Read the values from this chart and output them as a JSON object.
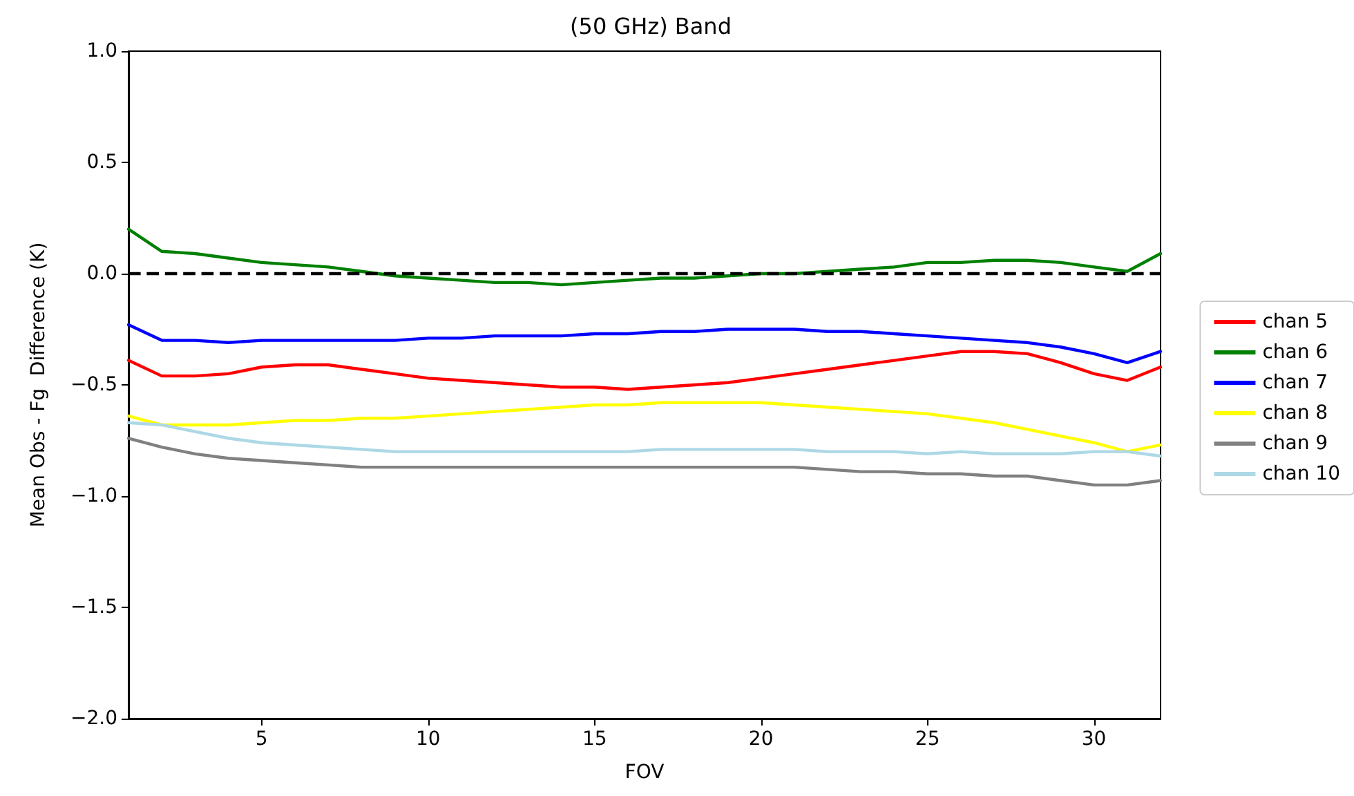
{
  "chart_data": {
    "type": "line",
    "title": "(50 GHz) Band",
    "xlabel": "FOV",
    "ylabel": "Mean Obs - Fg  Difference (K)",
    "x": [
      1,
      2,
      3,
      4,
      5,
      6,
      7,
      8,
      9,
      10,
      11,
      12,
      13,
      14,
      15,
      16,
      17,
      18,
      19,
      20,
      21,
      22,
      23,
      24,
      25,
      26,
      27,
      28,
      29,
      30,
      31,
      32
    ],
    "xlim": [
      1,
      32
    ],
    "xticks": [
      5,
      10,
      15,
      20,
      25,
      30
    ],
    "ylim": [
      -2,
      1
    ],
    "yticks": [
      {
        "value": -2,
        "label": "−2.0"
      },
      {
        "value": -1.5,
        "label": "−1.5"
      },
      {
        "value": -1,
        "label": "−1.0"
      },
      {
        "value": -0.5,
        "label": "−0.5"
      },
      {
        "value": 0,
        "label": "0.0"
      },
      {
        "value": 0.5,
        "label": "0.5"
      },
      {
        "value": 1,
        "label": "1.0"
      }
    ],
    "grid": false,
    "legend": "right",
    "marker": "none",
    "line_style": "solid",
    "ref_lines": [
      {
        "axis": "y",
        "value": 0,
        "label": null,
        "color": "#000000",
        "line_style": "dashed"
      }
    ],
    "series": [
      {
        "name": "chan 5",
        "color": "#ff0000",
        "values": [
          -0.39,
          -0.46,
          -0.46,
          -0.45,
          -0.42,
          -0.41,
          -0.41,
          -0.43,
          -0.45,
          -0.47,
          -0.48,
          -0.49,
          -0.5,
          -0.51,
          -0.51,
          -0.52,
          -0.51,
          -0.5,
          -0.49,
          -0.47,
          -0.45,
          -0.43,
          -0.41,
          -0.39,
          -0.37,
          -0.35,
          -0.35,
          -0.36,
          -0.4,
          -0.45,
          -0.48,
          -0.42
        ]
      },
      {
        "name": "chan 6",
        "color": "#008000",
        "values": [
          0.2,
          0.1,
          0.09,
          0.07,
          0.05,
          0.04,
          0.03,
          0.01,
          -0.01,
          -0.02,
          -0.03,
          -0.04,
          -0.04,
          -0.05,
          -0.04,
          -0.03,
          -0.02,
          -0.02,
          -0.01,
          0,
          0,
          0.01,
          0.02,
          0.03,
          0.05,
          0.05,
          0.06,
          0.06,
          0.05,
          0.03,
          0.01,
          0.09
        ]
      },
      {
        "name": "chan 7",
        "color": "#0000ff",
        "values": [
          -0.23,
          -0.3,
          -0.3,
          -0.31,
          -0.3,
          -0.3,
          -0.3,
          -0.3,
          -0.3,
          -0.29,
          -0.29,
          -0.28,
          -0.28,
          -0.28,
          -0.27,
          -0.27,
          -0.26,
          -0.26,
          -0.25,
          -0.25,
          -0.25,
          -0.26,
          -0.26,
          -0.27,
          -0.28,
          -0.29,
          -0.3,
          -0.31,
          -0.33,
          -0.36,
          -0.4,
          -0.35
        ]
      },
      {
        "name": "chan 8",
        "color": "#ffff00",
        "values": [
          -0.64,
          -0.68,
          -0.68,
          -0.68,
          -0.67,
          -0.66,
          -0.66,
          -0.65,
          -0.65,
          -0.64,
          -0.63,
          -0.62,
          -0.61,
          -0.6,
          -0.59,
          -0.59,
          -0.58,
          -0.58,
          -0.58,
          -0.58,
          -0.59,
          -0.6,
          -0.61,
          -0.62,
          -0.63,
          -0.65,
          -0.67,
          -0.7,
          -0.73,
          -0.76,
          -0.8,
          -0.77
        ]
      },
      {
        "name": "chan 9",
        "color": "#808080",
        "values": [
          -0.74,
          -0.78,
          -0.81,
          -0.83,
          -0.84,
          -0.85,
          -0.86,
          -0.87,
          -0.87,
          -0.87,
          -0.87,
          -0.87,
          -0.87,
          -0.87,
          -0.87,
          -0.87,
          -0.87,
          -0.87,
          -0.87,
          -0.87,
          -0.87,
          -0.88,
          -0.89,
          -0.89,
          -0.9,
          -0.9,
          -0.91,
          -0.91,
          -0.93,
          -0.95,
          -0.95,
          -0.93
        ]
      },
      {
        "name": "chan 10",
        "color": "#add8e6",
        "values": [
          -0.67,
          -0.68,
          -0.71,
          -0.74,
          -0.76,
          -0.77,
          -0.78,
          -0.79,
          -0.8,
          -0.8,
          -0.8,
          -0.8,
          -0.8,
          -0.8,
          -0.8,
          -0.8,
          -0.79,
          -0.79,
          -0.79,
          -0.79,
          -0.79,
          -0.8,
          -0.8,
          -0.8,
          -0.81,
          -0.8,
          -0.81,
          -0.81,
          -0.81,
          -0.8,
          -0.8,
          -0.82
        ]
      }
    ]
  }
}
